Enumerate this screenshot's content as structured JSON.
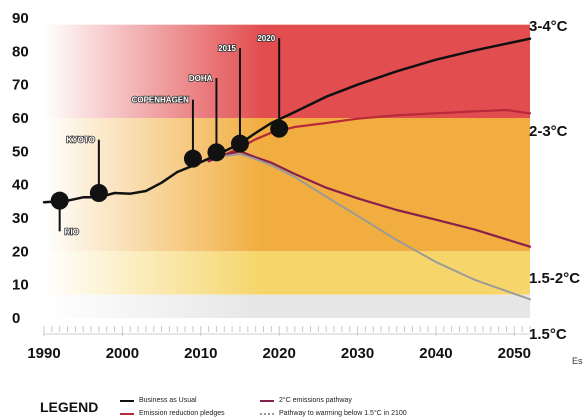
{
  "chart_data": {
    "type": "line",
    "title": "",
    "xlabel": "",
    "ylabel": "",
    "xlim": [
      1990,
      2052
    ],
    "ylim": [
      0,
      90
    ],
    "x_ticks": [
      1990,
      2000,
      2010,
      2020,
      2030,
      2040,
      2050
    ],
    "y_ticks": [
      0,
      10,
      20,
      30,
      40,
      50,
      60,
      70,
      80,
      90
    ],
    "grid": false,
    "bands": [
      {
        "label": "3-4°C",
        "y_range": [
          60,
          88
        ],
        "color": "#e24d50"
      },
      {
        "label": "2-3°C",
        "y_range": [
          20,
          60
        ],
        "color": "#f1ad3f"
      },
      {
        "label": "1.5-2°C",
        "y_range": [
          7,
          20
        ],
        "color": "#f6d56a"
      },
      {
        "label": "1.5°C",
        "y_range": [
          0,
          7
        ],
        "color": "#e6e6e6"
      }
    ],
    "series": [
      {
        "name": "Business as Usual",
        "color": "#111111",
        "x": [
          1990,
          1993,
          1995,
          1997,
          1999,
          2001,
          2003,
          2005,
          2007,
          2009,
          2011,
          2013,
          2015,
          2017,
          2019,
          2022,
          2026,
          2030,
          2035,
          2040,
          2045,
          2050,
          2052
        ],
        "y": [
          34.7,
          35.2,
          36.2,
          36.2,
          37.5,
          37.3,
          38.1,
          40.6,
          43.8,
          45.7,
          47.8,
          50,
          52.3,
          55.5,
          58.5,
          61.8,
          66.4,
          70,
          74,
          77.5,
          80.3,
          82.8,
          83.8
        ]
      },
      {
        "name": "Emission reduction pledges",
        "color": "#b82a3a",
        "x": [
          2011,
          2013,
          2015,
          2017,
          2019,
          2022,
          2026,
          2030,
          2035,
          2040,
          2045,
          2049,
          2052
        ],
        "y": [
          47,
          48.9,
          51.1,
          53.6,
          55.6,
          57.3,
          58.5,
          59.8,
          60.8,
          61.4,
          62,
          62.4,
          61.4
        ]
      },
      {
        "name": "2°C emissions pathway",
        "color": "#8a1f4c",
        "x": [
          2011,
          2013,
          2015,
          2017,
          2019,
          2022,
          2026,
          2030,
          2035,
          2040,
          2045,
          2052
        ],
        "y": [
          47.1,
          48.9,
          50,
          48.2,
          46.6,
          43.2,
          39.1,
          35.9,
          32.4,
          29.5,
          26.5,
          21.4
        ]
      },
      {
        "name": "Pathway to warming below 1.5°C in 2100",
        "color": "#9a9a9a",
        "x": [
          2013,
          2015,
          2017,
          2019,
          2022,
          2026,
          2030,
          2035,
          2040,
          2045,
          2052
        ],
        "y": [
          48.6,
          49.2,
          47.7,
          45.8,
          42.3,
          36.4,
          30.7,
          23.4,
          16.8,
          11.4,
          5.6
        ]
      }
    ],
    "events": [
      {
        "label": "RIO",
        "x": 1992,
        "y": 35.2,
        "label_y": 26
      },
      {
        "label": "KYOTO",
        "x": 1997,
        "y": 37.5,
        "label_y": 53.5
      },
      {
        "label": "COPENHAGEN",
        "x": 2009,
        "y": 47.8,
        "label_y": 65.5
      },
      {
        "label": "DOHA",
        "x": 2012,
        "y": 49.7,
        "label_y": 72
      },
      {
        "label": "2015",
        "x": 2015,
        "y": 52.3,
        "label_y": 81
      },
      {
        "label": "2020",
        "x": 2020,
        "y": 56.8,
        "label_y": 84
      }
    ],
    "legend": {
      "title": "LEGEND",
      "placement": "bottom",
      "items": [
        {
          "label": "Business as Usual",
          "color": "#111111",
          "style": "solid"
        },
        {
          "label": "Emission reduction pledges",
          "color": "#b82a3a",
          "style": "solid"
        },
        {
          "label": "2°C emissions pathway",
          "color": "#8a1f4c",
          "style": "solid"
        },
        {
          "label": "Pathway to warming below 1.5°C in 2100",
          "color": "#9a9a9a",
          "style": "dotted"
        }
      ]
    },
    "corner_text": "Es"
  }
}
